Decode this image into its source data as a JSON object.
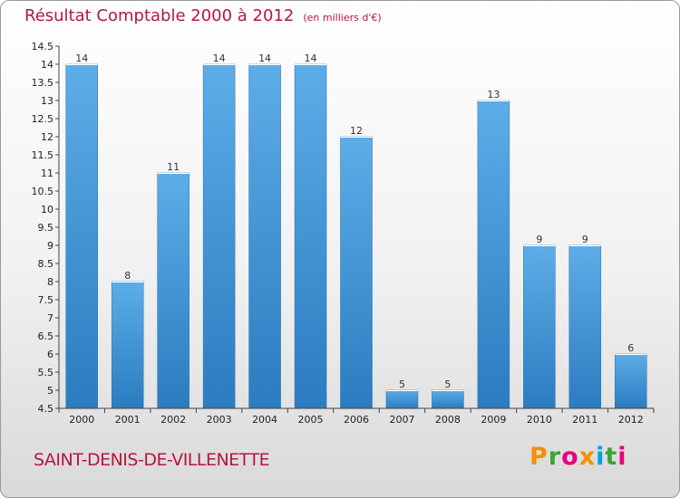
{
  "header": {
    "title": "Résultat Comptable 2000 à 2012",
    "subtitle": "(en milliers d'€)"
  },
  "footer": {
    "commune": "SAINT-DENIS-DE-VILLENETTE",
    "brand_letters": [
      "P",
      "r",
      "o",
      "x",
      "i",
      "t",
      "i"
    ],
    "brand_colors": [
      "#f39200",
      "#3aa535",
      "#e6007e",
      "#f39200",
      "#009fe3",
      "#3aa535",
      "#e6007e"
    ]
  },
  "colors": {
    "bar_light": "#5dade8",
    "bar_dark": "#2b7cc0",
    "accent": "#b3173f"
  },
  "chart_data": {
    "type": "bar",
    "categories": [
      "2000",
      "2001",
      "2002",
      "2003",
      "2004",
      "2005",
      "2006",
      "2007",
      "2008",
      "2009",
      "2010",
      "2011",
      "2012"
    ],
    "values": [
      14,
      8,
      11,
      14,
      14,
      14,
      12,
      5,
      5,
      13,
      9,
      9,
      6
    ],
    "data_labels": [
      "14",
      "8",
      "11",
      "14",
      "14",
      "14",
      "12",
      "5",
      "5",
      "13",
      "9",
      "9",
      "6"
    ],
    "yticks": [
      4.5,
      5,
      5.5,
      6,
      6.5,
      7,
      7.5,
      8,
      8.5,
      9,
      9.5,
      10,
      10.5,
      11,
      11.5,
      12,
      12.5,
      13,
      13.5,
      14,
      14.5
    ],
    "ytick_labels": [
      "4.5",
      "5",
      "5.5",
      "6",
      "6.5",
      "7",
      "7.5",
      "8",
      "8.5",
      "9",
      "9.5",
      "10",
      "10.5",
      "11",
      "11.5",
      "12",
      "12.5",
      "13",
      "13.5",
      "14",
      "14.5"
    ],
    "ylim": [
      4.5,
      14.5
    ],
    "grid": false,
    "legend": "none"
  }
}
